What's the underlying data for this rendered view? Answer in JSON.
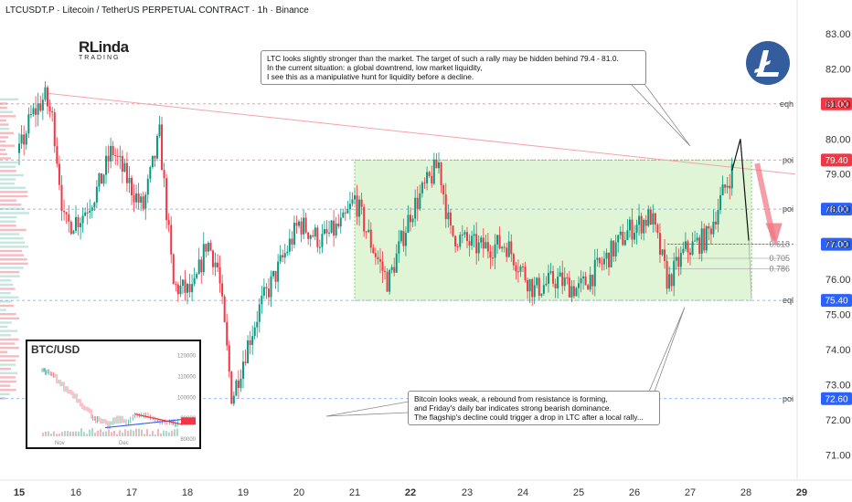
{
  "header": {
    "title": "LTCUSDT.P · Litecoin / TetherUS PERPETUAL CONTRACT · 1h · Binance"
  },
  "logo": {
    "line1": "RLinda",
    "line2": "TRADING"
  },
  "coin_icon": "litecoin-icon",
  "notes": {
    "top": "LTC looks slightly stronger than the market. The target of such a rally may be hidden behind 79.4 - 81.0.\nIn the current situation: a global downtrend, low market liquidity,\nI see this as a manipulative hunt for liquidity before a decline.",
    "bottom": "Bitcoin looks weak, a rebound from resistance is forming,\nand Friday's daily bar indicates strong bearish dominance.\nThe flagship's decline could trigger a drop in LTC after a local rally..."
  },
  "colors": {
    "bull": "#089981",
    "bear": "#f23645",
    "zone_fill": "#d6f1c8",
    "level_tag": "#f23645",
    "current_tag": "#2962ff",
    "level_tag_blue": "#2962ff"
  },
  "levels": [
    {
      "label": "eqh",
      "value": 81.0,
      "tag": "81.00",
      "tag_color": "red"
    },
    {
      "label": "poi",
      "value": 79.4,
      "tag": "79.40",
      "tag_color": "red"
    },
    {
      "label": "poi",
      "value": 78.0,
      "tag": "78.00",
      "tag_color": "blue"
    },
    {
      "label": "eql",
      "value": 75.4,
      "tag": "75.40",
      "tag_color": "blue"
    },
    {
      "label": "poi",
      "value": 72.6,
      "tag": "72.60",
      "tag_color": "blue"
    }
  ],
  "fib_levels": [
    {
      "label": "0.618",
      "value": 77.0
    },
    {
      "label": "0.705",
      "value": 76.6
    },
    {
      "label": "0.786",
      "value": 76.3
    }
  ],
  "current_price": {
    "value": 77.0,
    "tag": "77.00"
  },
  "chart_data": {
    "type": "candlestick",
    "title": "LTCUSDT.P · Litecoin / TetherUS PERPETUAL CONTRACT · 1h · Binance",
    "xlabel": "",
    "ylabel": "",
    "x_ticks": [
      "15",
      "16",
      "17",
      "18",
      "19",
      "20",
      "21",
      "22",
      "23",
      "24",
      "25",
      "26",
      "27",
      "28",
      "29"
    ],
    "x_ticks_bold": [
      "15",
      "22",
      "29"
    ],
    "y_ticks": [
      "71.00",
      "72.00",
      "73.00",
      "74.00",
      "75.00",
      "76.00",
      "77.00",
      "78.00",
      "79.00",
      "80.00",
      "81.00",
      "82.00",
      "83.00"
    ],
    "ylim": [
      70.2,
      83.6
    ],
    "grid": false,
    "range_zone": {
      "from_day": 21.0,
      "to_day": 28.1,
      "low": 75.4,
      "high": 79.4
    },
    "close_path": [
      {
        "day": 15.0,
        "price": 79.6
      },
      {
        "day": 15.2,
        "price": 80.6
      },
      {
        "day": 15.45,
        "price": 81.2
      },
      {
        "day": 15.6,
        "price": 80.5
      },
      {
        "day": 15.8,
        "price": 77.5
      },
      {
        "day": 16.1,
        "price": 77.8
      },
      {
        "day": 16.4,
        "price": 78.6
      },
      {
        "day": 16.65,
        "price": 79.7
      },
      {
        "day": 16.9,
        "price": 78.9
      },
      {
        "day": 17.2,
        "price": 78.0
      },
      {
        "day": 17.5,
        "price": 80.1
      },
      {
        "day": 17.75,
        "price": 75.8
      },
      {
        "day": 18.1,
        "price": 75.6
      },
      {
        "day": 18.35,
        "price": 77.1
      },
      {
        "day": 18.55,
        "price": 76.3
      },
      {
        "day": 18.8,
        "price": 72.6
      },
      {
        "day": 19.05,
        "price": 74.0
      },
      {
        "day": 19.3,
        "price": 75.2
      },
      {
        "day": 19.6,
        "price": 76.2
      },
      {
        "day": 20.0,
        "price": 77.6
      },
      {
        "day": 20.4,
        "price": 77.1
      },
      {
        "day": 20.8,
        "price": 77.6
      },
      {
        "day": 21.0,
        "price": 78.3
      },
      {
        "day": 21.3,
        "price": 77.0
      },
      {
        "day": 21.6,
        "price": 75.9
      },
      {
        "day": 22.0,
        "price": 77.9
      },
      {
        "day": 22.5,
        "price": 79.3
      },
      {
        "day": 22.7,
        "price": 77.3
      },
      {
        "day": 23.2,
        "price": 76.9
      },
      {
        "day": 23.7,
        "price": 77.0
      },
      {
        "day": 24.2,
        "price": 75.7
      },
      {
        "day": 24.6,
        "price": 76.0
      },
      {
        "day": 25.0,
        "price": 75.7
      },
      {
        "day": 25.5,
        "price": 76.6
      },
      {
        "day": 25.9,
        "price": 77.4
      },
      {
        "day": 26.3,
        "price": 77.8
      },
      {
        "day": 26.6,
        "price": 75.9
      },
      {
        "day": 26.9,
        "price": 76.8
      },
      {
        "day": 27.3,
        "price": 77.2
      },
      {
        "day": 27.6,
        "price": 78.5
      },
      {
        "day": 27.75,
        "price": 79.1
      }
    ],
    "projection": [
      {
        "day": 27.75,
        "price": 79.1
      },
      {
        "day": 27.9,
        "price": 80.0
      },
      {
        "day": 28.05,
        "price": 77.1
      }
    ],
    "inset": {
      "title": "BTC/USD",
      "y_ticks": [
        "120000",
        "110000",
        "100000",
        "90000",
        "80000"
      ],
      "x_ticks": [
        "Nov",
        "Dec"
      ]
    }
  }
}
